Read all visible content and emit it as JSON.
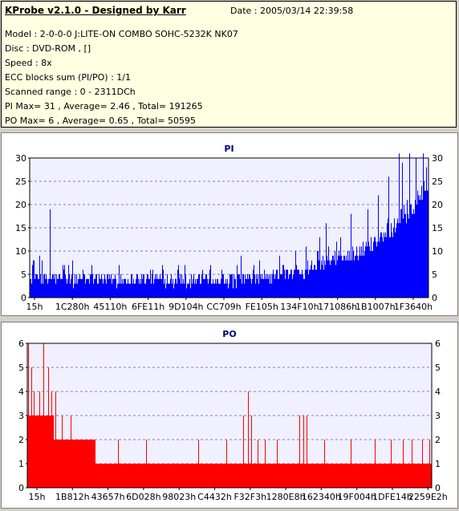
{
  "header": {
    "title": "KProbe v2.1.0 - Designed by Karr",
    "date": "Date : 2005/03/14 22:39:58",
    "lines": [
      "Model : 2-0-0-0 J:LITE-ON COMBO SOHC-5232K NK07",
      "Disc : DVD-ROM ,  []",
      "Speed : 8x",
      "ECC blocks sum (PI/PO) : 1/1",
      "Scanned range : 0 - 2311DCh",
      "PI Max= 31 , Average= 2.46 , Total= 191265",
      "PO Max= 6 , Average= 0.65 , Total= 50595"
    ]
  },
  "colors": {
    "pi_bar": "#0000ff",
    "po_bar": "#ff0000",
    "plot_bg": "#f0f0ff",
    "grid": "#8080c0",
    "title": "#000080"
  },
  "chart_data": [
    {
      "type": "bar",
      "title": "PI",
      "ylim": [
        0,
        30
      ],
      "yticks": [
        0,
        5,
        10,
        15,
        20,
        25,
        30
      ],
      "xticks": [
        "15h",
        "1C280h",
        "45110h",
        "6FE11h",
        "9D104h",
        "CC709h",
        "FE105h",
        "134F10h",
        "171086h",
        "1B1007h",
        "1F3640h"
      ],
      "xlim": [
        0,
        2311
      ],
      "grid": true,
      "envelope": [
        [
          0,
          4
        ],
        [
          80,
          4
        ],
        [
          160,
          4
        ],
        [
          240,
          4
        ],
        [
          320,
          4
        ],
        [
          400,
          4
        ],
        [
          480,
          4
        ],
        [
          560,
          4
        ],
        [
          640,
          4
        ],
        [
          720,
          4
        ],
        [
          800,
          4
        ],
        [
          880,
          4
        ],
        [
          960,
          4
        ],
        [
          1040,
          4
        ],
        [
          1120,
          4
        ],
        [
          1200,
          4
        ],
        [
          1280,
          4
        ],
        [
          1360,
          4
        ],
        [
          1440,
          5
        ],
        [
          1520,
          5
        ],
        [
          1600,
          6
        ],
        [
          1680,
          7
        ],
        [
          1760,
          8
        ],
        [
          1840,
          9
        ],
        [
          1920,
          10
        ],
        [
          2000,
          12
        ],
        [
          2080,
          14
        ],
        [
          2160,
          17
        ],
        [
          2240,
          20
        ],
        [
          2311,
          24
        ]
      ],
      "spikes": [
        [
          15,
          7
        ],
        [
          60,
          9
        ],
        [
          120,
          19
        ],
        [
          200,
          7
        ],
        [
          360,
          6
        ],
        [
          520,
          7
        ],
        [
          700,
          6
        ],
        [
          900,
          7
        ],
        [
          1050,
          7
        ],
        [
          1200,
          7
        ],
        [
          1300,
          7
        ],
        [
          1450,
          9
        ],
        [
          1540,
          10
        ],
        [
          1600,
          11
        ],
        [
          1680,
          13
        ],
        [
          1720,
          16
        ],
        [
          1800,
          13
        ],
        [
          1860,
          18
        ],
        [
          1960,
          19
        ],
        [
          2020,
          22
        ],
        [
          2080,
          26
        ],
        [
          2140,
          31
        ],
        [
          2160,
          29
        ],
        [
          2200,
          31
        ],
        [
          2240,
          30
        ],
        [
          2280,
          31
        ],
        [
          2300,
          28
        ]
      ]
    },
    {
      "type": "bar",
      "title": "PO",
      "ylim": [
        0,
        6
      ],
      "yticks": [
        0,
        1,
        2,
        3,
        4,
        5,
        6
      ],
      "xticks": [
        "15h",
        "1B812h",
        "43657h",
        "6D028h",
        "98023h",
        "C4432h",
        "F32F3h",
        "1280E8h",
        "162340h",
        "19F004h",
        "1DFE14h",
        "2259E2h"
      ],
      "xlim": [
        0,
        2311
      ],
      "grid": true,
      "envelope": [
        [
          0,
          3
        ],
        [
          60,
          3
        ],
        [
          120,
          3
        ],
        [
          180,
          2
        ],
        [
          240,
          2
        ],
        [
          300,
          2
        ],
        [
          360,
          2
        ],
        [
          420,
          1
        ],
        [
          2311,
          1
        ]
      ],
      "spikes": [
        [
          5,
          6
        ],
        [
          25,
          5
        ],
        [
          40,
          4
        ],
        [
          70,
          4
        ],
        [
          95,
          6
        ],
        [
          120,
          5
        ],
        [
          140,
          4
        ],
        [
          165,
          4
        ],
        [
          200,
          3
        ],
        [
          250,
          3
        ],
        [
          290,
          2
        ],
        [
          330,
          2
        ],
        [
          380,
          2
        ],
        [
          520,
          2
        ],
        [
          680,
          2
        ],
        [
          980,
          2
        ],
        [
          1140,
          2
        ],
        [
          1235,
          3
        ],
        [
          1265,
          4
        ],
        [
          1280,
          3
        ],
        [
          1320,
          2
        ],
        [
          1360,
          2
        ],
        [
          1430,
          2
        ],
        [
          1555,
          3
        ],
        [
          1580,
          3
        ],
        [
          1600,
          3
        ],
        [
          1700,
          2
        ],
        [
          1850,
          2
        ],
        [
          1990,
          2
        ],
        [
          2080,
          2
        ],
        [
          2150,
          2
        ],
        [
          2200,
          2
        ],
        [
          2260,
          2
        ],
        [
          2300,
          2
        ]
      ]
    }
  ]
}
